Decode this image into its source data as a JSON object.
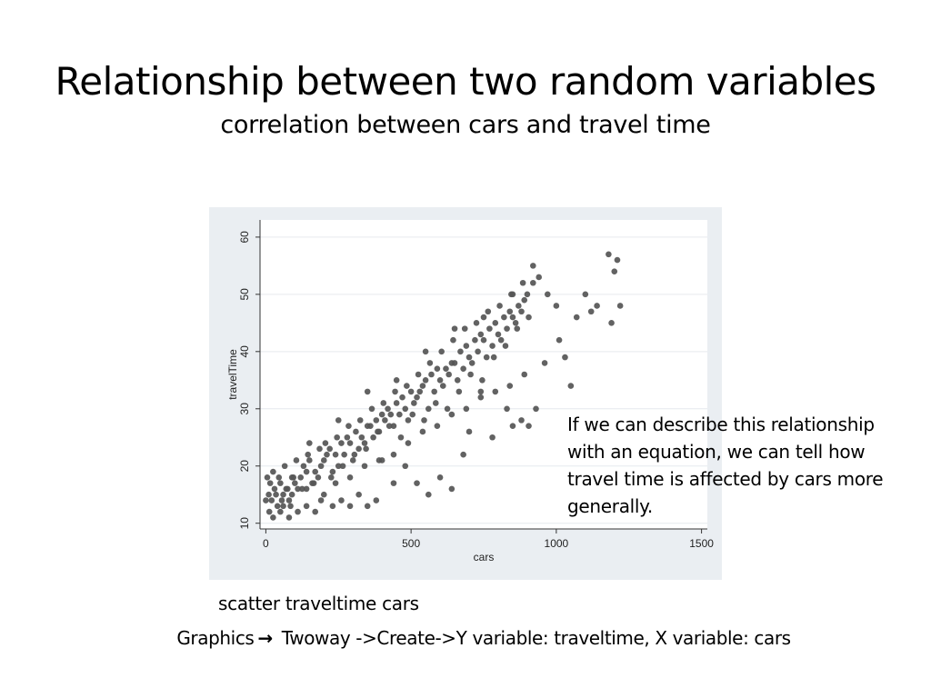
{
  "slide": {
    "title": "Relationship between two random variables",
    "subtitle": "correlation between cars and travel time",
    "annotation": "If we can describe this relationship\nwith an equation, we can  tell how\ntravel time is affected by cars more\ngenerally.",
    "command": "scatter traveltime cars",
    "menu_path": {
      "start": "Graphics",
      "arrow": "→",
      "rest": " Twoway ->Create->Y variable: traveltime, X variable: cars"
    }
  },
  "chart_data": {
    "type": "scatter",
    "xlabel": "cars",
    "ylabel": "travelTime",
    "xlim": [
      -20,
      1520
    ],
    "ylim": [
      9,
      63
    ],
    "xticks": [
      0,
      500,
      1000,
      1500
    ],
    "yticks": [
      10,
      20,
      30,
      40,
      50,
      60
    ],
    "grid": true,
    "colors": {
      "panel_background": "#eaeef2",
      "plot_background": "#ffffff",
      "marker": "#555555",
      "gridline": "#e6e9ed"
    },
    "series": [
      {
        "x": [
          10,
          30,
          50,
          70,
          90,
          20,
          60,
          100,
          120,
          140,
          40,
          80,
          110,
          5,
          15,
          25,
          35,
          55,
          75,
          95,
          130,
          150,
          170,
          190,
          210,
          160,
          180,
          200,
          220,
          240,
          260,
          280,
          230,
          250,
          270,
          290,
          310,
          330,
          350,
          300,
          320,
          340,
          360,
          380,
          400,
          420,
          370,
          390,
          410,
          430,
          450,
          470,
          440,
          460,
          480,
          500,
          520,
          540,
          490,
          510,
          530,
          550,
          570,
          590,
          560,
          580,
          600,
          620,
          640,
          610,
          630,
          650,
          670,
          690,
          660,
          680,
          700,
          720,
          740,
          710,
          730,
          750,
          770,
          790,
          760,
          780,
          800,
          820,
          840,
          810,
          830,
          850,
          870,
          890,
          860,
          880,
          900,
          920,
          940,
          0,
          12,
          45,
          65,
          85,
          105,
          125,
          145,
          165,
          185,
          205,
          225,
          245,
          265,
          285,
          305,
          325,
          345,
          365,
          385,
          405,
          425,
          445,
          465,
          485,
          505,
          525,
          545,
          565,
          585,
          605,
          625,
          645,
          665,
          685,
          705,
          725,
          745,
          765,
          785,
          805,
          825,
          845,
          865,
          885,
          905,
          60,
          90,
          140,
          190,
          240,
          290,
          340,
          390,
          440,
          490,
          540,
          590,
          640,
          690,
          740,
          790,
          840,
          890,
          150,
          250,
          350,
          450,
          550,
          650,
          750,
          850,
          920,
          970,
          1000,
          1010,
          1030,
          1050,
          1070,
          1100,
          1120,
          1140,
          1180,
          1200,
          1220,
          1210,
          1190,
          905,
          930,
          960,
          880,
          850,
          830,
          780,
          740,
          700,
          680,
          640,
          600,
          560,
          520,
          480,
          440,
          400,
          380,
          350,
          320,
          290,
          260,
          230,
          200,
          170,
          140,
          110,
          80,
          50,
          25
        ],
        "y": [
          15,
          16,
          17,
          16,
          18,
          14,
          15,
          17,
          18,
          19,
          13,
          14,
          16,
          18,
          17,
          19,
          15,
          14,
          16,
          18,
          20,
          21,
          19,
          20,
          22,
          17,
          18,
          21,
          23,
          22,
          24,
          25,
          19,
          20,
          22,
          24,
          26,
          25,
          27,
          21,
          23,
          24,
          27,
          28,
          29,
          30,
          25,
          26,
          28,
          29,
          31,
          32,
          27,
          29,
          30,
          33,
          32,
          34,
          28,
          31,
          33,
          35,
          36,
          37,
          30,
          33,
          35,
          37,
          38,
          34,
          36,
          38,
          40,
          41,
          35,
          37,
          39,
          42,
          43,
          38,
          40,
          42,
          44,
          45,
          39,
          41,
          43,
          46,
          47,
          42,
          44,
          46,
          48,
          49,
          45,
          47,
          50,
          52,
          53,
          14,
          12,
          18,
          20,
          13,
          21,
          16,
          22,
          17,
          23,
          24,
          18,
          25,
          20,
          27,
          22,
          28,
          23,
          30,
          26,
          31,
          27,
          33,
          25,
          34,
          29,
          36,
          28,
          38,
          31,
          40,
          30,
          42,
          33,
          44,
          36,
          45,
          35,
          47,
          39,
          48,
          41,
          50,
          44,
          52,
          46,
          13,
          15,
          16,
          14,
          17,
          18,
          20,
          21,
          22,
          24,
          26,
          27,
          29,
          30,
          32,
          33,
          34,
          36,
          24,
          28,
          33,
          35,
          40,
          44,
          46,
          50,
          55,
          50,
          48,
          42,
          39,
          34,
          46,
          50,
          47,
          48,
          57,
          54,
          48,
          56,
          45,
          27,
          30,
          38,
          28,
          27,
          30,
          25,
          33,
          26,
          22,
          16,
          18,
          15,
          17,
          20,
          17,
          21,
          14,
          13,
          15,
          13,
          14,
          13,
          15,
          12,
          13,
          12,
          11,
          12,
          11
        ]
      }
    ]
  }
}
